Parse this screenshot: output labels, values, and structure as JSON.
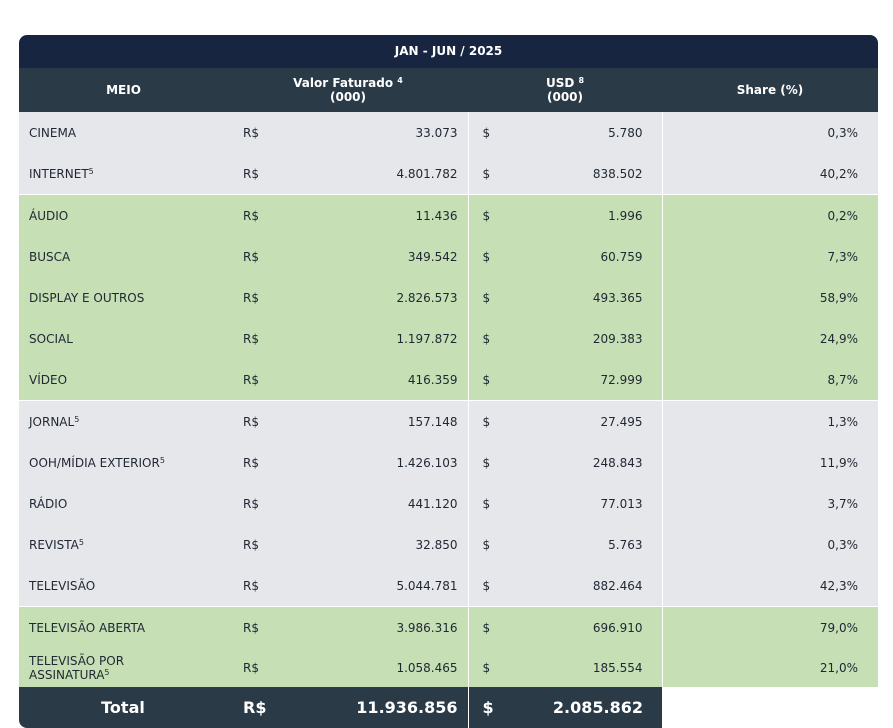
{
  "period": "JAN - JUN / 2025",
  "headers": {
    "meio": "MEIO",
    "valor_line1": "Valor Faturado",
    "valor_sup": "4",
    "valor_line2": "(000)",
    "usd_line1": "USD",
    "usd_sup": "8",
    "usd_line2": "(000)",
    "share": "Share (%)"
  },
  "rows": [
    {
      "meio": "CINEMA",
      "sup": "",
      "cur1": "R$",
      "valor": "33.073",
      "cur2": "$",
      "usd": "5.780",
      "share": "0,3%",
      "group": "grey"
    },
    {
      "meio": "INTERNET",
      "sup": "5",
      "cur1": "R$",
      "valor": "4.801.782",
      "cur2": "$",
      "usd": "838.502",
      "share": "40,2%",
      "group": "grey"
    },
    {
      "meio": "ÁUDIO",
      "sup": "",
      "cur1": "R$",
      "valor": "11.436",
      "cur2": "$",
      "usd": "1.996",
      "share": "0,2%",
      "group": "green"
    },
    {
      "meio": "BUSCA",
      "sup": "",
      "cur1": "R$",
      "valor": "349.542",
      "cur2": "$",
      "usd": "60.759",
      "share": "7,3%",
      "group": "green"
    },
    {
      "meio": "DISPLAY E OUTROS",
      "sup": "",
      "cur1": "R$",
      "valor": "2.826.573",
      "cur2": "$",
      "usd": "493.365",
      "share": "58,9%",
      "group": "green"
    },
    {
      "meio": "SOCIAL",
      "sup": "",
      "cur1": "R$",
      "valor": "1.197.872",
      "cur2": "$",
      "usd": "209.383",
      "share": "24,9%",
      "group": "green"
    },
    {
      "meio": "VÍDEO",
      "sup": "",
      "cur1": "R$",
      "valor": "416.359",
      "cur2": "$",
      "usd": "72.999",
      "share": "8,7%",
      "group": "green"
    },
    {
      "meio": "JORNAL",
      "sup": "5",
      "cur1": "R$",
      "valor": "157.148",
      "cur2": "$",
      "usd": "27.495",
      "share": "1,3%",
      "group": "grey"
    },
    {
      "meio": "OOH/MÍDIA EXTERIOR",
      "sup": "5",
      "cur1": "R$",
      "valor": "1.426.103",
      "cur2": "$",
      "usd": "248.843",
      "share": "11,9%",
      "group": "grey"
    },
    {
      "meio": "RÁDIO",
      "sup": "",
      "cur1": "R$",
      "valor": "441.120",
      "cur2": "$",
      "usd": "77.013",
      "share": "3,7%",
      "group": "grey"
    },
    {
      "meio": "REVISTA",
      "sup": "5",
      "cur1": "R$",
      "valor": "32.850",
      "cur2": "$",
      "usd": "5.763",
      "share": "0,3%",
      "group": "grey"
    },
    {
      "meio": "TELEVISÃO",
      "sup": "",
      "cur1": "R$",
      "valor": "5.044.781",
      "cur2": "$",
      "usd": "882.464",
      "share": "42,3%",
      "group": "grey"
    },
    {
      "meio": "TELEVISÃO ABERTA",
      "sup": "",
      "cur1": "R$",
      "valor": "3.986.316",
      "cur2": "$",
      "usd": "696.910",
      "share": "79,0%",
      "group": "green"
    },
    {
      "meio": "TELEVISÃO POR",
      "meio_line2": "ASSINATURA",
      "sup": "5",
      "cur1": "R$",
      "valor": "1.058.465",
      "cur2": "$",
      "usd": "185.554",
      "share": "21,0%",
      "group": "green"
    }
  ],
  "total": {
    "label": "Total",
    "cur1": "R$",
    "valor": "11.936.856",
    "cur2": "$",
    "usd": "2.085.862"
  }
}
